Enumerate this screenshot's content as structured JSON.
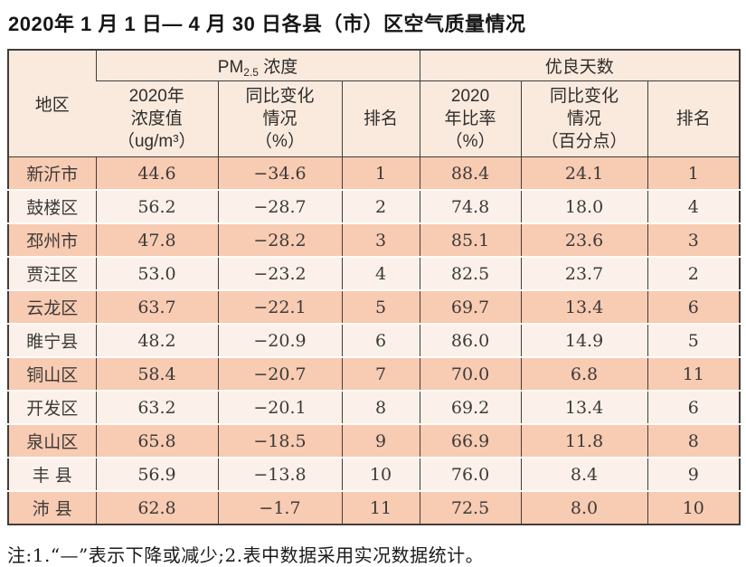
{
  "page": {
    "title": "2020年 1 月 1 日— 4 月 30 日各县（市）区空气质量情况",
    "footnote": "注:1.“—”表示下降或减少;2.表中数据采用实况数据统计。"
  },
  "table": {
    "corner_header": "地区",
    "group_headers": {
      "pm25": {
        "prefix": "PM",
        "sub": "2.5",
        "suffix": " 浓度"
      },
      "good_days": "优良天数"
    },
    "sub_headers": {
      "pm_value": "2020年\n浓度值\n（ug/m³）",
      "pm_change": "同比变化\n情况\n（%）",
      "pm_rank": "排名",
      "good_ratio": "2020\n年比率\n（%）",
      "good_change": "同比变化\n情况\n（百分点）",
      "good_rank": "排名"
    },
    "rows": [
      [
        "新沂市",
        "44.6",
        "−34.6",
        "1",
        "88.4",
        "24.1",
        "1"
      ],
      [
        "鼓楼区",
        "56.2",
        "−28.7",
        "2",
        "74.8",
        "18.0",
        "4"
      ],
      [
        "邳州市",
        "47.8",
        "−28.2",
        "3",
        "85.1",
        "23.6",
        "3"
      ],
      [
        "贾汪区",
        "53.0",
        "−23.2",
        "4",
        "82.5",
        "23.7",
        "2"
      ],
      [
        "云龙区",
        "63.7",
        "−22.1",
        "5",
        "69.7",
        "13.4",
        "6"
      ],
      [
        "睢宁县",
        "48.2",
        "−20.9",
        "6",
        "86.0",
        "14.9",
        "5"
      ],
      [
        "铜山区",
        "58.4",
        "−20.7",
        "7",
        "70.0",
        "6.8",
        "11"
      ],
      [
        "开发区",
        "63.2",
        "−20.1",
        "8",
        "69.2",
        "13.4",
        "6"
      ],
      [
        "泉山区",
        "65.8",
        "−18.5",
        "9",
        "66.9",
        "11.8",
        "8"
      ],
      [
        "丰 县",
        "56.9",
        "−13.8",
        "10",
        "76.0",
        "8.4",
        "9"
      ],
      [
        "沛 县",
        "62.8",
        "−1.7",
        "11",
        "72.5",
        "8.0",
        "10"
      ]
    ]
  },
  "colors": {
    "header_bg": "#faeade",
    "row_odd": "#f8cbb3",
    "row_even": "#fcf1ea",
    "border": "#413d3a",
    "title_text": "#161616"
  },
  "chart_data": {
    "type": "table",
    "title": "2020年1月1日—4月30日各县（市）区空气质量情况",
    "column_groups": [
      "地区",
      "PM2.5浓度",
      "优良天数"
    ],
    "columns": [
      "地区",
      "PM2.5浓度 2020年浓度值（ug/m³）",
      "PM2.5浓度 同比变化情况（%）",
      "PM2.5浓度 排名",
      "优良天数 2020年比率（%）",
      "优良天数 同比变化情况（百分点）",
      "优良天数 排名"
    ],
    "rows": [
      [
        "新沂市",
        44.6,
        -34.6,
        1,
        88.4,
        24.1,
        1
      ],
      [
        "鼓楼区",
        56.2,
        -28.7,
        2,
        74.8,
        18.0,
        4
      ],
      [
        "邳州市",
        47.8,
        -28.2,
        3,
        85.1,
        23.6,
        3
      ],
      [
        "贾汪区",
        53.0,
        -23.2,
        4,
        82.5,
        23.7,
        2
      ],
      [
        "云龙区",
        63.7,
        -22.1,
        5,
        69.7,
        13.4,
        6
      ],
      [
        "睢宁县",
        48.2,
        -20.9,
        6,
        86.0,
        14.9,
        5
      ],
      [
        "铜山区",
        58.4,
        -20.7,
        7,
        70.0,
        6.8,
        11
      ],
      [
        "开发区",
        63.2,
        -20.1,
        8,
        69.2,
        13.4,
        6
      ],
      [
        "泉山区",
        65.8,
        -18.5,
        9,
        66.9,
        11.8,
        8
      ],
      [
        "丰县",
        56.9,
        -13.8,
        10,
        76.0,
        8.4,
        9
      ],
      [
        "沛县",
        62.8,
        -1.7,
        11,
        72.5,
        8.0,
        10
      ]
    ],
    "footnote": "注:1.“—”表示下降或减少;2.表中数据采用实况数据统计。"
  }
}
